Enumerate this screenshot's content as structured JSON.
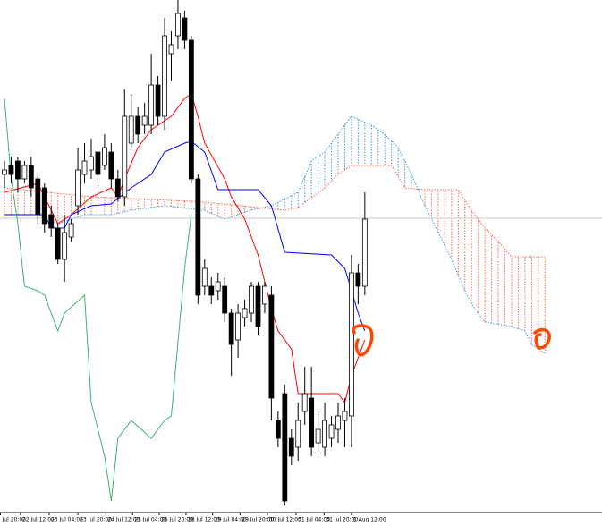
{
  "chart_data": {
    "type": "candlestick",
    "ylim": [
      -13,
      560
    ],
    "xlim": [
      -0.7,
      89.5
    ],
    "price_line": 316,
    "price_line_color": "#c8c8c8",
    "up_color": "#ffffff",
    "down_color": "#000000",
    "open": [
      365,
      375,
      380,
      360,
      375,
      360,
      350,
      320,
      305,
      270,
      295,
      330,
      365,
      370,
      390,
      375,
      390,
      360,
      340,
      400,
      430,
      420,
      420,
      465,
      430,
      500,
      520,
      540,
      515,
      360,
      240,
      240,
      235,
      240,
      210,
      180,
      205,
      210,
      240,
      220,
      230,
      90,
      120,
      70,
      60,
      100,
      115,
      65,
      60,
      70,
      80,
      90,
      95,
      255,
      240
    ],
    "high": [
      380,
      385,
      385,
      380,
      385,
      365,
      355,
      330,
      310,
      320,
      315,
      395,
      400,
      405,
      400,
      410,
      400,
      370,
      460,
      455,
      440,
      445,
      500,
      475,
      540,
      525,
      560,
      548,
      520,
      365,
      270,
      250,
      255,
      250,
      215,
      220,
      225,
      245,
      245,
      245,
      240,
      100,
      130,
      80,
      110,
      150,
      150,
      100,
      110,
      95,
      110,
      115,
      275,
      265,
      345
    ],
    "low": [
      350,
      355,
      345,
      355,
      340,
      310,
      300,
      295,
      265,
      245,
      290,
      320,
      355,
      360,
      355,
      370,
      350,
      335,
      330,
      395,
      400,
      410,
      410,
      420,
      415,
      470,
      505,
      505,
      355,
      220,
      230,
      220,
      225,
      200,
      140,
      160,
      195,
      200,
      185,
      210,
      90,
      60,
      -5,
      40,
      45,
      85,
      50,
      55,
      50,
      60,
      65,
      60,
      60,
      220,
      230
    ],
    "close": [
      370,
      365,
      360,
      375,
      350,
      320,
      310,
      305,
      270,
      300,
      310,
      370,
      380,
      385,
      365,
      395,
      360,
      340,
      430,
      430,
      410,
      430,
      465,
      430,
      520,
      510,
      545,
      515,
      360,
      230,
      260,
      230,
      245,
      210,
      175,
      210,
      215,
      240,
      195,
      240,
      115,
      70,
      0,
      50,
      90,
      120,
      60,
      80,
      90,
      85,
      95,
      100,
      255,
      240,
      315
    ],
    "series": [
      {
        "color": "#ff0000",
        "x": [
          0,
          5,
          8,
          10,
          13,
          16,
          17,
          18,
          20,
          22,
          25,
          27,
          28,
          29,
          30,
          33,
          34,
          36,
          38,
          40,
          41,
          43,
          44,
          50,
          51,
          52,
          54
        ],
        "values": [
          345,
          355,
          310,
          320,
          340,
          350,
          340,
          360,
          395,
          415,
          430,
          450,
          455,
          430,
          400,
          360,
          340,
          315,
          275,
          215,
          190,
          170,
          120,
          120,
          110,
          140,
          180
        ]
      },
      {
        "color": "#0000ff",
        "x": [
          0,
          6,
          7,
          9,
          10,
          13,
          16,
          19,
          22,
          24,
          27,
          28,
          30,
          32,
          38,
          40,
          42,
          49,
          51,
          53,
          54
        ],
        "values": [
          320,
          320,
          305,
          305,
          320,
          330,
          332,
          350,
          365,
          390,
          400,
          402,
          390,
          348,
          348,
          330,
          278,
          275,
          260,
          210,
          190
        ]
      },
      {
        "color": "#3cb371",
        "x": [
          0,
          1,
          2,
          3,
          5,
          6,
          8,
          9,
          12,
          13,
          15,
          16,
          17,
          19,
          22,
          24,
          25,
          27,
          28
        ],
        "values": [
          450,
          360,
          310,
          240,
          235,
          230,
          190,
          210,
          230,
          110,
          50,
          0,
          70,
          90,
          70,
          90,
          95,
          260,
          320
        ]
      }
    ],
    "cloud": {
      "span_a": {
        "color": "#3d9be9",
        "x": [
          0,
          5,
          8,
          12,
          16,
          19,
          24,
          30,
          33,
          37,
          40,
          44,
          46,
          48,
          50,
          52,
          55,
          57,
          59,
          61,
          63,
          65,
          67,
          69,
          70,
          72,
          76,
          78,
          79,
          81
        ],
        "values": [
          320,
          320,
          310,
          320,
          320,
          325,
          330,
          325,
          315,
          325,
          330,
          345,
          380,
          390,
          410,
          430,
          420,
          410,
          395,
          365,
          330,
          300,
          270,
          235,
          220,
          200,
          195,
          190,
          175,
          165
        ]
      },
      "span_b": {
        "color": "#ff6347",
        "x": [
          0,
          13,
          28,
          33,
          38,
          42,
          44,
          48,
          50,
          52,
          58,
          60,
          63,
          68,
          70,
          72,
          74,
          76,
          81
        ],
        "values": [
          350,
          340,
          335,
          332,
          328,
          325,
          328,
          350,
          365,
          375,
          375,
          350,
          348,
          348,
          325,
          305,
          290,
          273,
          273
        ]
      }
    },
    "xticks": [
      {
        "value": -0.6,
        "label": "Jul 20:00"
      },
      {
        "value": 2.4,
        "label": "22 Jul 12:00"
      },
      {
        "value": 6.7,
        "label": "23 Jul 04:00"
      },
      {
        "value": 11,
        "label": "23 Jul 20:00"
      },
      {
        "value": 15.2,
        "label": "24 Jul 12:00"
      },
      {
        "value": 19.2,
        "label": "25 Jul 04:00"
      },
      {
        "value": 23.2,
        "label": "25 Jul 20:00"
      },
      {
        "value": 27.2,
        "label": "28 Jul 12:00"
      },
      {
        "value": 31.2,
        "label": "29 Jul 04:00"
      },
      {
        "value": 35.3,
        "label": "29 Jul 20:00"
      },
      {
        "value": 39.4,
        "label": "30 Jul 12:00"
      },
      {
        "value": 43.7,
        "label": "31 Jul 04:00"
      },
      {
        "value": 47.9,
        "label": "31 Jul 20:00"
      },
      {
        "value": 52,
        "label": "1 Aug 12:00"
      }
    ]
  }
}
